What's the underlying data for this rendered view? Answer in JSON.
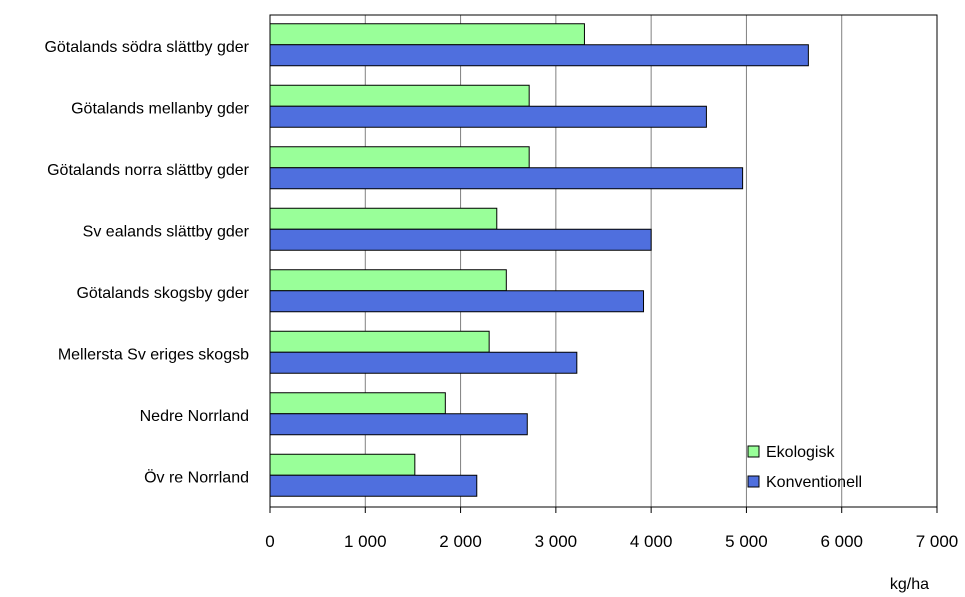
{
  "chart_data": {
    "type": "bar",
    "orientation": "horizontal",
    "title": "",
    "xlabel": "",
    "ylabel": "",
    "unit": "kg/ha",
    "xlim": [
      0,
      7000
    ],
    "grid": "vertical",
    "legend_position": "bottom-right",
    "categories": [
      "Götalands södra slättby gder",
      "Götalands mellanby gder",
      "Götalands norra slättby gder",
      "Sv ealands slättby gder",
      "Götalands skogsby gder",
      "Mellersta Sv eriges skogsb",
      "Nedre Norrland",
      "Öv re Norrland"
    ],
    "series": [
      {
        "name": "Ekologisk",
        "color": "#99ff99",
        "values": [
          3300,
          2720,
          2720,
          2380,
          2480,
          2300,
          1840,
          1520
        ]
      },
      {
        "name": "Konventionell",
        "color": "#4f6fde",
        "values": [
          5650,
          4580,
          4960,
          4000,
          3920,
          3220,
          2700,
          2170
        ]
      }
    ],
    "ticks": [
      0,
      1000,
      2000,
      3000,
      4000,
      5000,
      6000,
      7000
    ],
    "tick_labels": [
      "0",
      "1 000",
      "2 000",
      "3 000",
      "4 000",
      "5 000",
      "6 000",
      "7 000"
    ]
  }
}
